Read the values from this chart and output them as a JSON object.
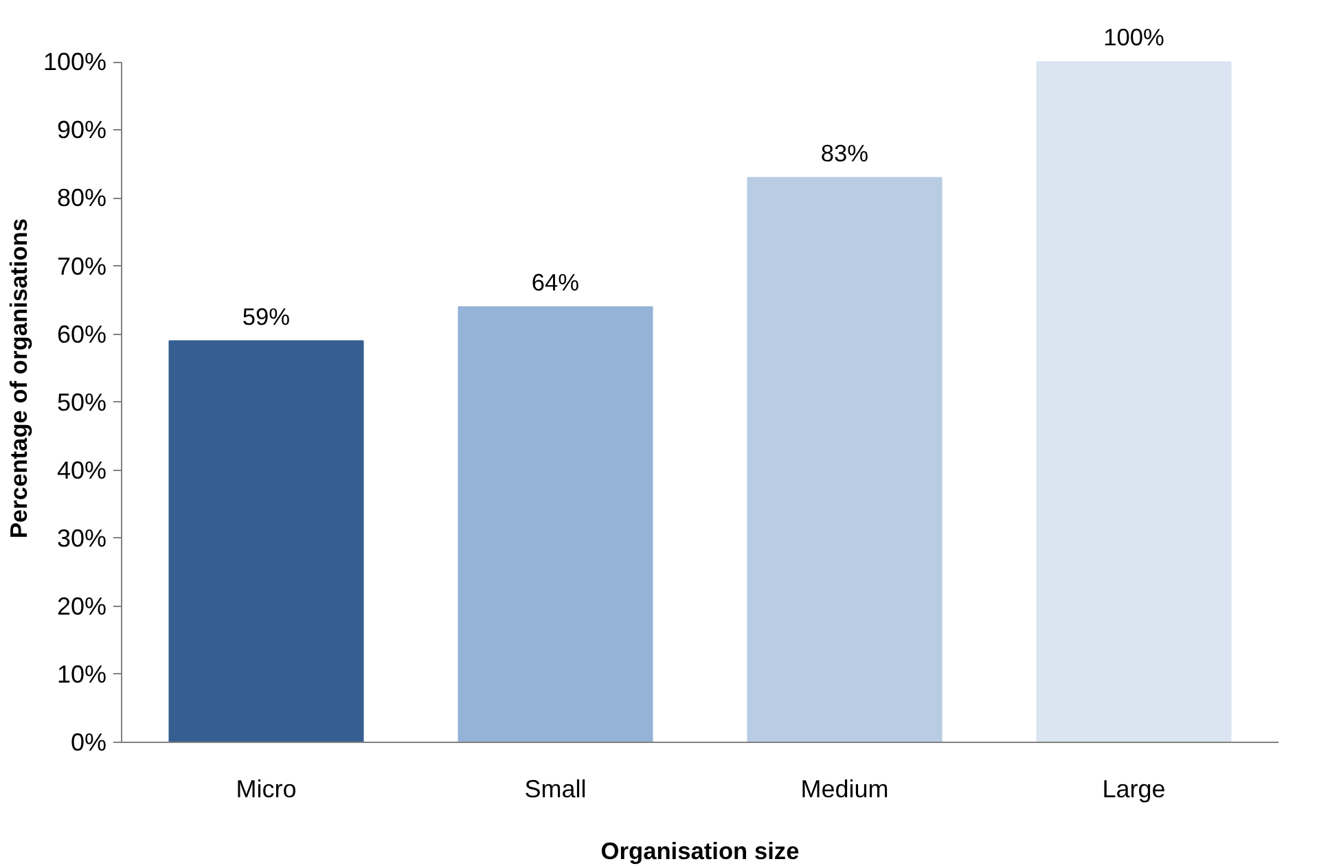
{
  "chart_data": {
    "type": "bar",
    "xlabel": "Organisation size",
    "ylabel": "Percentage of organisations",
    "categories": [
      "Micro",
      "Small",
      "Medium",
      "Large"
    ],
    "values": [
      59,
      64,
      83,
      100
    ],
    "colors": [
      "#365f91",
      "#95b3d7",
      "#b8cce4",
      "#dbe5f1"
    ],
    "value_labels": [
      "59%",
      "64%",
      "83%",
      "100%"
    ],
    "ylim": [
      0,
      100
    ],
    "yticks": [
      {
        "value": 0,
        "label": "0%"
      },
      {
        "value": 10,
        "label": "10%"
      },
      {
        "value": 20,
        "label": "20%"
      },
      {
        "value": 30,
        "label": "30%"
      },
      {
        "value": 40,
        "label": "40%"
      },
      {
        "value": 50,
        "label": "50%"
      },
      {
        "value": 60,
        "label": "60%"
      },
      {
        "value": 70,
        "label": "70%"
      },
      {
        "value": 80,
        "label": "80%"
      },
      {
        "value": 90,
        "label": "90%"
      },
      {
        "value": 100,
        "label": "100%"
      }
    ],
    "grid": false
  }
}
